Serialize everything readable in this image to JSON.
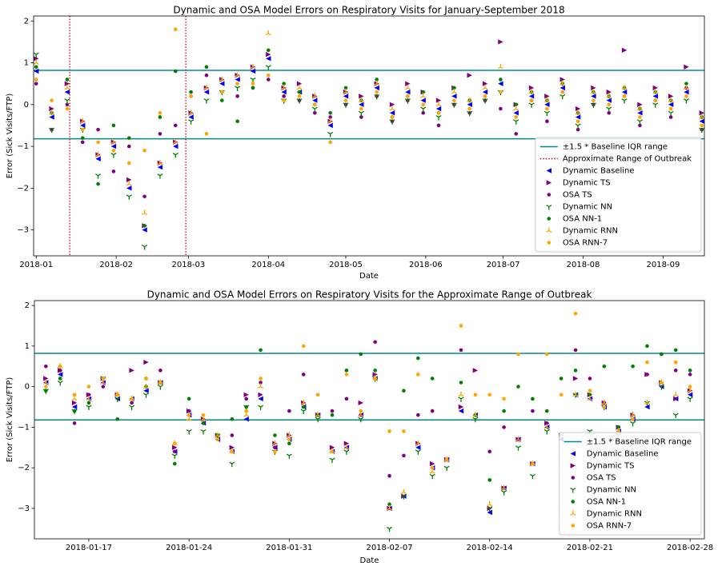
{
  "chart_data": [
    {
      "type": "scatter",
      "title": "Dynamic and OSA Model Errors on Respiratory Visits for January-September 2018",
      "x_label": "Date",
      "y_label": "Error (Sick Visits/FTP)",
      "xlim": [
        -1,
        259
      ],
      "ylim": [
        -3.62,
        2.12
      ],
      "xticks": [
        {
          "value": 0,
          "label": "2018-01"
        },
        {
          "value": 31,
          "label": "2018-02"
        },
        {
          "value": 59,
          "label": "2018-03"
        },
        {
          "value": 90,
          "label": "2018-04"
        },
        {
          "value": 120,
          "label": "2018-05"
        },
        {
          "value": 151,
          "label": "2018-06"
        },
        {
          "value": 181,
          "label": "2018-07"
        },
        {
          "value": 212,
          "label": "2018-08"
        },
        {
          "value": 243,
          "label": "2018-09"
        }
      ],
      "yticks": [
        {
          "value": -3,
          "label": "−3"
        },
        {
          "value": -2,
          "label": "−2"
        },
        {
          "value": -1,
          "label": "−1"
        },
        0,
        1,
        2
      ],
      "legend": "lower right",
      "reference_lines": [
        {
          "name": "±1.5 * Baseline IQR range",
          "color": "#008b8b",
          "hlines": [
            -0.82,
            0.82
          ]
        },
        {
          "name": "Approximate Range of Outbreak",
          "color": "#e00000",
          "vlines": [
            13,
            58
          ]
        }
      ],
      "x": [
        0,
        6,
        12,
        18,
        24,
        30,
        36,
        42,
        48,
        54,
        60,
        66,
        72,
        78,
        84,
        90,
        96,
        102,
        108,
        114,
        120,
        126,
        132,
        138,
        144,
        150,
        156,
        162,
        168,
        174,
        180,
        186,
        192,
        198,
        204,
        210,
        216,
        222,
        228,
        234,
        240,
        246,
        252,
        258
      ],
      "series": [
        {
          "name": "Dynamic Baseline",
          "color": "#0000ff",
          "marker": "<",
          "values": [
            0.8,
            -0.3,
            0.3,
            -0.5,
            -1.3,
            -1.0,
            -2.0,
            -3.0,
            -1.5,
            -1.0,
            -0.3,
            0.3,
            0.5,
            0.6,
            0.8,
            1.1,
            0.3,
            0.3,
            0.1,
            -0.5,
            0.2,
            0.0,
            0.4,
            -0.2,
            0.3,
            0.1,
            -0.1,
            0.2,
            0.0,
            0.3,
            0.5,
            -0.2,
            0.2,
            0.0,
            0.4,
            -0.3,
            0.2,
            0.1,
            0.3,
            -0.2,
            0.2,
            0.0,
            0.3,
            -0.4
          ]
        },
        {
          "name": "Dynamic TS",
          "color": "#800080",
          "marker": ">",
          "values": [
            1.1,
            -0.1,
            0.5,
            -0.4,
            -1.2,
            -0.9,
            -1.8,
            -2.9,
            -1.4,
            -0.9,
            -0.2,
            0.4,
            0.6,
            0.7,
            0.9,
            1.2,
            0.4,
            0.5,
            0.2,
            -0.4,
            0.3,
            0.2,
            0.5,
            0.0,
            0.5,
            0.3,
            0.1,
            0.4,
            0.7,
            0.5,
            1.5,
            0.0,
            0.4,
            0.2,
            0.6,
            -0.1,
            0.4,
            0.3,
            1.3,
            0.0,
            0.4,
            0.2,
            0.9,
            -0.2
          ]
        },
        {
          "name": "OSA TS",
          "color": "#800080",
          "marker": "o",
          "values": [
            0.5,
            -0.6,
            0.0,
            -0.9,
            -0.6,
            -1.6,
            -1.0,
            -2.2,
            -0.7,
            -0.5,
            0.2,
            0.7,
            0.3,
            0.2,
            0.4,
            0.6,
            0.2,
            0.1,
            -0.2,
            -0.3,
            0.0,
            -0.3,
            0.2,
            -0.4,
            0.1,
            -0.2,
            -0.5,
            0.0,
            -0.2,
            0.1,
            -0.1,
            -0.7,
            0.1,
            -0.4,
            0.3,
            -0.6,
            0.0,
            -0.2,
            0.2,
            -0.5,
            0.1,
            -0.3,
            0.4,
            -0.6
          ]
        },
        {
          "name": "Dynamic NN",
          "color": "#008000",
          "marker": "1",
          "values": [
            1.2,
            -0.6,
            0.1,
            -0.6,
            -1.7,
            -1.2,
            -2.2,
            -3.4,
            -1.7,
            -1.2,
            -0.4,
            0.1,
            0.3,
            0.4,
            0.6,
            0.9,
            0.1,
            0.1,
            -0.1,
            -0.7,
            0.0,
            -0.2,
            0.2,
            -0.4,
            0.1,
            -0.1,
            -0.3,
            0.0,
            -0.2,
            0.1,
            0.3,
            -0.4,
            0.0,
            -0.2,
            0.2,
            -0.5,
            0.0,
            -0.1,
            0.1,
            -0.4,
            0.0,
            -0.2,
            0.1,
            -0.6
          ]
        },
        {
          "name": "OSA NN-1",
          "color": "#008000",
          "marker": "o",
          "values": [
            0.9,
            -0.2,
            0.6,
            -0.8,
            -1.9,
            -0.5,
            -0.8,
            -2.9,
            -0.3,
            0.8,
            0.3,
            0.9,
            0.1,
            -0.4,
            0.4,
            1.3,
            0.5,
            0.3,
            0.0,
            -0.2,
            0.4,
            0.1,
            0.6,
            -0.3,
            0.2,
            0.3,
            -0.2,
            0.4,
            0.1,
            0.2,
            0.6,
            0.0,
            0.3,
            0.1,
            0.5,
            -0.2,
            0.3,
            0.2,
            0.4,
            -0.1,
            0.3,
            0.1,
            0.5,
            -0.3
          ]
        },
        {
          "name": "Dynamic RNN",
          "color": "#ffa500",
          "marker": "2",
          "values": [
            1.0,
            -0.2,
            0.4,
            -0.4,
            -1.2,
            -0.9,
            -1.9,
            -2.6,
            -1.4,
            -0.9,
            -0.2,
            0.4,
            0.6,
            0.7,
            0.9,
            1.7,
            0.4,
            0.4,
            0.2,
            -0.4,
            0.3,
            0.1,
            0.5,
            -0.1,
            0.4,
            0.2,
            0.0,
            0.3,
            0.1,
            0.4,
            0.9,
            -0.1,
            0.3,
            0.1,
            0.5,
            -0.2,
            0.3,
            0.2,
            0.4,
            -0.1,
            0.3,
            0.1,
            0.4,
            -0.3
          ]
        },
        {
          "name": "OSA RNN-7",
          "color": "#ffa500",
          "marker": "o",
          "values": [
            0.6,
            0.1,
            -0.1,
            -0.6,
            -0.9,
            -1.1,
            -1.4,
            -1.1,
            -0.2,
            1.8,
            0.2,
            -0.7,
            0.3,
            0.5,
            0.5,
            0.7,
            0.1,
            0.2,
            0.0,
            -0.9,
            0.1,
            -0.1,
            0.3,
            -0.3,
            0.2,
            0.0,
            -0.2,
            0.1,
            -0.1,
            0.2,
            0.3,
            -0.3,
            0.1,
            -0.1,
            0.3,
            -0.4,
            0.1,
            0.0,
            0.2,
            -0.3,
            0.1,
            -0.1,
            0.2,
            -0.5
          ]
        }
      ]
    },
    {
      "type": "scatter",
      "title": "Dynamic and OSA Model Errors on Respiratory Visits for the Approximate Range of Outbreak",
      "x_label": "Date",
      "y_label": "Error (Sick Visits/FTP)",
      "xlim": [
        12.2,
        59
      ],
      "ylim": [
        -3.75,
        2.12
      ],
      "xticks": [
        {
          "value": 16,
          "label": "2018-01-17"
        },
        {
          "value": 23,
          "label": "2018-01-24"
        },
        {
          "value": 30,
          "label": "2018-01-31"
        },
        {
          "value": 37,
          "label": "2018-02-07"
        },
        {
          "value": 44,
          "label": "2018-02-14"
        },
        {
          "value": 51,
          "label": "2018-02-21"
        },
        {
          "value": 58,
          "label": "2018-02-28"
        }
      ],
      "yticks": [
        {
          "value": -3,
          "label": "−3"
        },
        {
          "value": -2,
          "label": "−2"
        },
        {
          "value": -1,
          "label": "−1"
        },
        0,
        1,
        2
      ],
      "legend": "lower right",
      "reference_lines": [
        {
          "name": "±1.5 * Baseline IQR range",
          "color": "#008b8b",
          "hlines": [
            -0.82,
            0.82
          ]
        }
      ],
      "x": [
        13,
        14,
        15,
        16,
        17,
        18,
        19,
        20,
        21,
        22,
        23,
        24,
        25,
        26,
        27,
        28,
        29,
        30,
        31,
        32,
        33,
        34,
        35,
        36,
        37,
        38,
        39,
        40,
        41,
        42,
        43,
        44,
        45,
        46,
        47,
        48,
        49,
        50,
        51,
        52,
        53,
        54,
        55,
        56,
        57,
        58
      ],
      "series": [
        {
          "name": "Dynamic Baseline",
          "color": "#0000ff",
          "marker": "<",
          "values": [
            0.1,
            0.3,
            -0.5,
            -0.3,
            0.1,
            -0.3,
            -0.3,
            -0.1,
            0.1,
            -1.6,
            -0.7,
            -0.9,
            -1.3,
            -1.6,
            -0.8,
            -0.3,
            -1.5,
            -1.3,
            -0.5,
            -0.7,
            -1.6,
            -1.5,
            -0.7,
            0.2,
            -3.0,
            -2.7,
            -1.5,
            -2.0,
            -1.8,
            -0.6,
            -0.7,
            -3.1,
            -2.5,
            -1.3,
            -1.9,
            -1.0,
            -1.3,
            -0.2,
            -0.3,
            -0.5,
            -1.1,
            -0.8,
            -0.5,
            0.0,
            -0.3,
            -0.2
          ]
        },
        {
          "name": "Dynamic TS",
          "color": "#800080",
          "marker": ">",
          "values": [
            0.2,
            0.4,
            -0.4,
            -0.2,
            0.2,
            -0.2,
            0.4,
            0.6,
            0.1,
            -1.5,
            -0.6,
            -0.8,
            -1.2,
            -1.5,
            -0.2,
            -0.2,
            -1.4,
            -1.2,
            -0.4,
            -0.7,
            -1.5,
            -1.4,
            -0.4,
            0.3,
            -3.0,
            -2.7,
            -1.4,
            -1.9,
            -1.8,
            -0.5,
            0.4,
            -3.0,
            -2.5,
            -1.3,
            -1.9,
            -0.9,
            -1.2,
            0.2,
            -0.2,
            -0.4,
            -1.0,
            -0.7,
            0.3,
            0.1,
            -0.3,
            -0.1
          ]
        },
        {
          "name": "OSA TS",
          "color": "#800080",
          "marker": "o",
          "values": [
            0.5,
            0.4,
            -0.9,
            -0.2,
            0.0,
            -0.2,
            -0.4,
            0.2,
            0.4,
            -1.6,
            -0.6,
            -0.9,
            -1.3,
            -1.2,
            -0.3,
            0.1,
            -1.5,
            -0.6,
            0.3,
            -0.7,
            -0.6,
            -0.3,
            -0.7,
            1.1,
            -2.2,
            -1.7,
            -0.7,
            -0.6,
            -1.8,
            0.9,
            -0.7,
            -1.6,
            -1.0,
            -1.3,
            -0.6,
            -0.9,
            -1.2,
            0.9,
            0.2,
            -0.4,
            -1.0,
            -0.8,
            0.3,
            0.8,
            0.4,
            0.3
          ]
        },
        {
          "name": "Dynamic NN",
          "color": "#008000",
          "marker": "1",
          "values": [
            -0.1,
            0.1,
            -0.6,
            -0.5,
            0.2,
            -0.3,
            -0.5,
            -0.2,
            0.0,
            -1.7,
            -1.1,
            -1.1,
            -1.2,
            -1.9,
            -0.5,
            -0.5,
            -1.6,
            -1.7,
            -0.6,
            -0.8,
            -1.8,
            -1.6,
            -0.8,
            0.2,
            -3.5,
            -2.7,
            -1.6,
            -2.2,
            -2.0,
            -0.3,
            -0.8,
            -3.0,
            -2.6,
            -1.5,
            -2.2,
            -1.1,
            -1.2,
            -0.2,
            -1.1,
            -0.5,
            -1.2,
            -0.9,
            -0.4,
            0.0,
            -0.7,
            -0.3
          ]
        },
        {
          "name": "OSA NN-1",
          "color": "#008000",
          "marker": "o",
          "values": [
            -0.1,
            0.2,
            -0.6,
            -0.4,
            0.2,
            -0.8,
            -0.3,
            0.0,
            0.1,
            -1.9,
            -0.3,
            -0.9,
            -1.2,
            -0.8,
            -0.5,
            0.9,
            -1.2,
            -1.4,
            -0.5,
            -0.7,
            -0.7,
            0.4,
            0.8,
            0.4,
            -2.9,
            -0.1,
            0.7,
            0.2,
            -1.8,
            0.1,
            -0.7,
            -2.3,
            -0.6,
            0.0,
            -0.3,
            -0.6,
            0.2,
            0.4,
            -0.2,
            0.5,
            -1.0,
            0.5,
            1.0,
            0.8,
            0.9,
            0.4
          ]
        },
        {
          "name": "Dynamic RNN",
          "color": "#ffa500",
          "marker": "2",
          "values": [
            0.1,
            0.5,
            -0.3,
            -0.3,
            0.1,
            -0.2,
            -0.3,
            0.0,
            0.1,
            -1.4,
            -0.8,
            -0.8,
            -1.2,
            -1.6,
            -0.7,
            0.0,
            -1.4,
            -1.2,
            -0.4,
            -0.7,
            -1.6,
            -1.5,
            -0.7,
            0.2,
            -3.0,
            -2.6,
            -1.4,
            -2.1,
            -1.8,
            -0.2,
            -0.7,
            -2.9,
            -2.5,
            -1.3,
            -1.9,
            -1.0,
            -1.2,
            -0.2,
            -0.3,
            -0.4,
            -1.1,
            -0.7,
            -0.4,
            0.1,
            -0.2,
            -0.1
          ]
        },
        {
          "name": "OSA RNN-7",
          "color": "#ffa500",
          "marker": "o",
          "values": [
            0.0,
            0.5,
            -0.2,
            0.0,
            0.2,
            -0.2,
            -0.3,
            0.2,
            0.1,
            -1.4,
            -0.7,
            -0.7,
            -1.3,
            -1.6,
            -0.6,
            0.2,
            -1.6,
            -1.3,
            1.0,
            -0.2,
            -1.6,
            0.3,
            -0.6,
            0.2,
            -1.1,
            -1.1,
            0.3,
            -2.0,
            -1.8,
            1.5,
            -0.2,
            -0.2,
            -0.3,
            0.8,
            -1.9,
            0.8,
            -0.2,
            1.8,
            -0.1,
            -0.5,
            -1.1,
            -0.8,
            0.6,
            0.1,
            0.6,
            0.0
          ]
        }
      ]
    }
  ]
}
